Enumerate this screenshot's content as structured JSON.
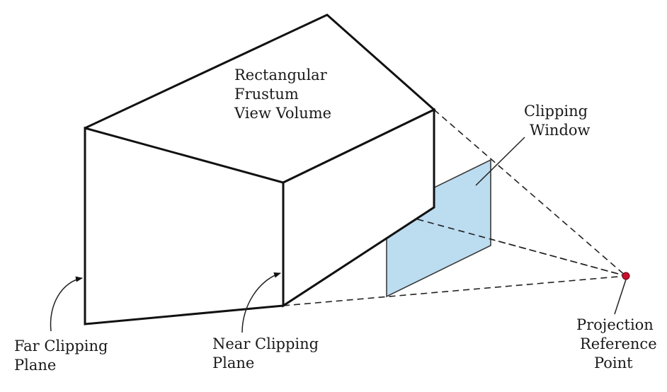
{
  "labels": {
    "frustum": [
      "Rectangular",
      "Frustum",
      "View Volume"
    ],
    "clipping_window": [
      "Clipping",
      "Window"
    ],
    "far_plane": [
      "Far Clipping",
      "Plane"
    ],
    "near_plane": [
      "Near Clipping",
      "Plane"
    ],
    "prp": [
      "Projection",
      "Reference",
      "Point"
    ]
  },
  "colors": {
    "window_fill": "#bcdcf0",
    "window_stroke": "#3a3a3a",
    "prp_dot": "#c8102e",
    "lines": "#111111"
  }
}
